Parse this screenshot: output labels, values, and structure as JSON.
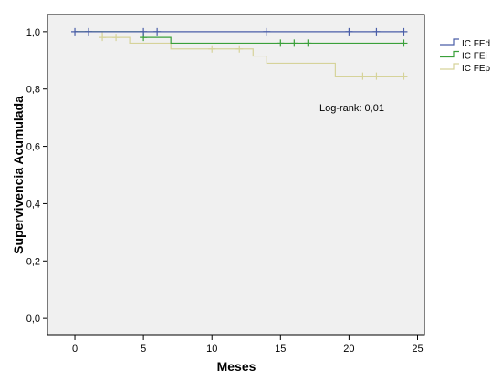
{
  "chart_data": {
    "type": "line",
    "subtype": "kaplan-meier step",
    "xlabel": "Meses",
    "ylabel": "Supervivencia Acumulada",
    "xlim": [
      -2,
      25.5
    ],
    "ylim": [
      -0.06,
      1.06
    ],
    "xticks": [
      0,
      5,
      10,
      15,
      20,
      25
    ],
    "xtick_labels": [
      "0",
      "5",
      "10",
      "15",
      "20",
      "25"
    ],
    "yticks": [
      0.0,
      0.2,
      0.4,
      0.6,
      0.8,
      1.0
    ],
    "ytick_labels": [
      "0,0",
      "0,2",
      "0,4",
      "0,6",
      "0,8",
      "1,0"
    ],
    "grid": false,
    "plot_background": "#f0f0f0",
    "legend_position": "top-right outside plot",
    "annotation": "Log-rank: 0,01",
    "series": [
      {
        "name": "IC FEd",
        "color": "#4a5ea8",
        "steps": [
          [
            0,
            1.0
          ],
          [
            24,
            1.0
          ]
        ],
        "censored": [
          0,
          1,
          5,
          6,
          14,
          20,
          22,
          24
        ]
      },
      {
        "name": "IC FEi",
        "color": "#3aa03a",
        "steps": [
          [
            0,
            1.0
          ],
          [
            5,
            0.98
          ],
          [
            7,
            0.96
          ],
          [
            24,
            0.96
          ]
        ],
        "censored": [
          5,
          15,
          16,
          17,
          24
        ]
      },
      {
        "name": "IC FEp",
        "color": "#d6d39a",
        "steps": [
          [
            0,
            1.0
          ],
          [
            2,
            0.98
          ],
          [
            4,
            0.96
          ],
          [
            7,
            0.94
          ],
          [
            13,
            0.915
          ],
          [
            14,
            0.89
          ],
          [
            19,
            0.845
          ],
          [
            24,
            0.845
          ]
        ],
        "censored": [
          2,
          3,
          10,
          12,
          21,
          22,
          24
        ]
      }
    ]
  }
}
